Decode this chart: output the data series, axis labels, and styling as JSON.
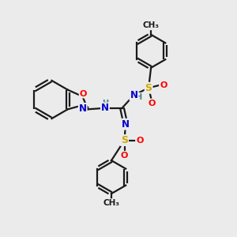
{
  "background_color": "#ebebeb",
  "bond_color": "#1a1a1a",
  "atom_colors": {
    "C": "#1a1a1a",
    "N": "#0000cc",
    "O": "#ff0000",
    "S": "#ccaa00",
    "H": "#408080"
  },
  "figsize": [
    3.0,
    3.0
  ],
  "dpi": 100,
  "xlim": [
    0,
    10
  ],
  "ylim": [
    0,
    10
  ]
}
